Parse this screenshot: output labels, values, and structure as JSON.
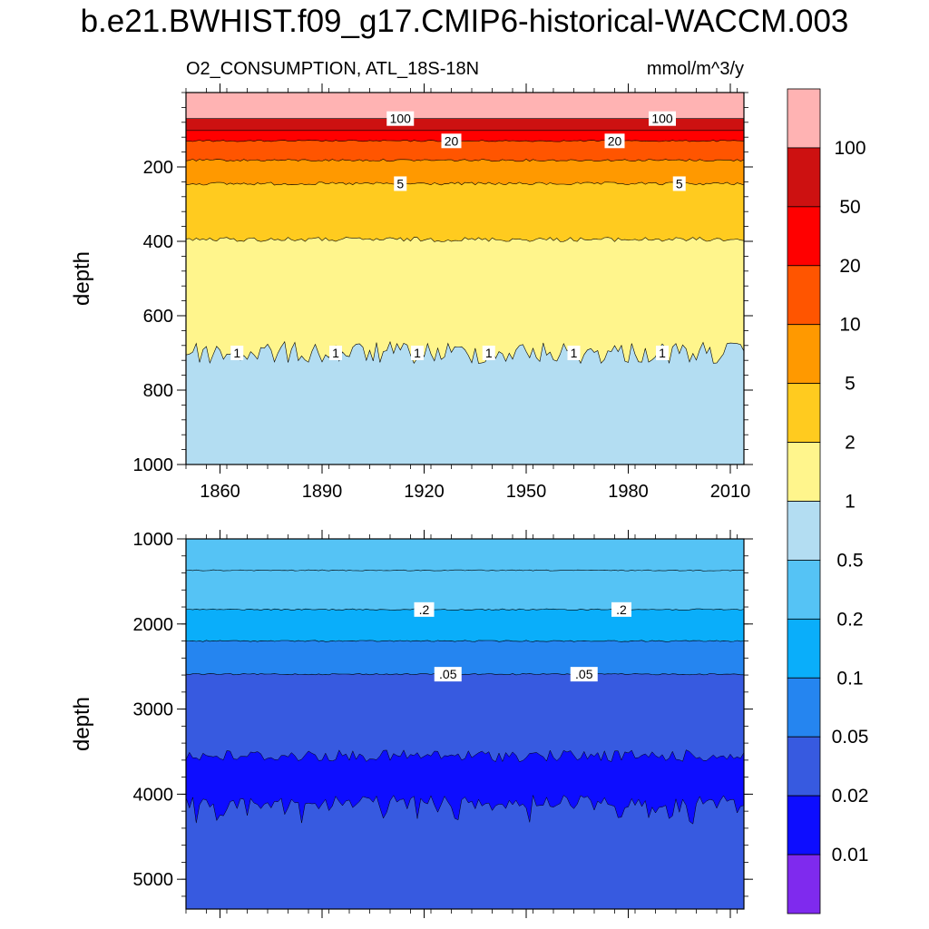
{
  "title": "b.e21.BWHIST.f09_g17.CMIP6-historical-WACCM.003",
  "subtitle_left": "O2_CONSUMPTION, ATL_18S-18N",
  "subtitle_right": "mmol/m^3/y",
  "chart_data": [
    {
      "type": "filled-contour",
      "panel": "upper",
      "ylabel": "depth",
      "xlim": [
        1850,
        2014
      ],
      "ylim": [
        1000,
        0
      ],
      "yaxis_reversed": true,
      "xticks": [
        "1860",
        "1890",
        "1920",
        "1950",
        "1980",
        "2010"
      ],
      "yticks": [
        "200",
        "400",
        "600",
        "800",
        "1000"
      ],
      "contour_lines": [
        {
          "level": 100,
          "mean_depth": 70,
          "labels": [
            {
              "text": "100",
              "x": 1913
            },
            {
              "text": "100",
              "x": 1990
            }
          ]
        },
        {
          "level": 50,
          "mean_depth": 102
        },
        {
          "level": 20,
          "mean_depth": 130,
          "labels": [
            {
              "text": "20",
              "x": 1928
            },
            {
              "text": "20",
              "x": 1976
            }
          ]
        },
        {
          "level": 10,
          "mean_depth": 182
        },
        {
          "level": 5,
          "mean_depth": 245,
          "labels": [
            {
              "text": "5",
              "x": 1913
            },
            {
              "text": "5",
              "x": 1995
            }
          ]
        },
        {
          "level": 2,
          "mean_depth": 395
        },
        {
          "level": 1,
          "mean_depth": 700,
          "labels": [
            {
              "text": "1",
              "x": 1865
            },
            {
              "text": "1",
              "x": 1894
            },
            {
              "text": "1",
              "x": 1918
            },
            {
              "text": "1",
              "x": 1939
            },
            {
              "text": "1",
              "x": 1964
            },
            {
              "text": "1",
              "x": 1990
            }
          ]
        }
      ]
    },
    {
      "type": "filled-contour",
      "panel": "lower",
      "ylabel": "depth",
      "xlim": [
        1850,
        2014
      ],
      "ylim": [
        5350,
        1000
      ],
      "yaxis_reversed": true,
      "yticks": [
        "1000",
        "2000",
        "3000",
        "4000",
        "5000"
      ],
      "contour_lines": [
        {
          "level": 0.5,
          "mean_depth": 1370
        },
        {
          "level": 0.2,
          "mean_depth": 1830,
          "labels": [
            {
              "text": ".2",
              "x": 1920
            },
            {
              "text": ".2",
              "x": 1978
            }
          ]
        },
        {
          "level": 0.1,
          "mean_depth": 2200
        },
        {
          "level": 0.05,
          "mean_depth": 2590,
          "labels": [
            {
              "text": ".05",
              "x": 1927
            },
            {
              "text": ".05",
              "x": 1967
            }
          ]
        },
        {
          "level": 0.02,
          "mean_depth": 3550,
          "lower_edge_depth": 4050
        }
      ]
    }
  ],
  "colorbar": {
    "labels": [
      "100",
      "50",
      "20",
      "10",
      "5",
      "2",
      "1",
      "0.5",
      "0.2",
      "0.1",
      "0.05",
      "0.02",
      "0.01"
    ],
    "colors": [
      "#ffb3b3",
      "#cd1111",
      "#ff0000",
      "#ff5500",
      "#ff9900",
      "#ffcb1f",
      "#fff58c",
      "#b3ddf2",
      "#55c3f5",
      "#0aaefa",
      "#2585f0",
      "#375ae0",
      "#0d0dff",
      "#7f2aee"
    ]
  }
}
